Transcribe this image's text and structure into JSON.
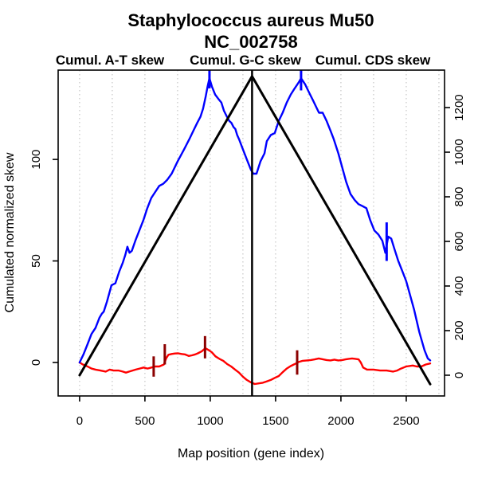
{
  "title": {
    "line1": "Staphylococcus aureus Mu50",
    "line2": "NC_002758"
  },
  "legend": [
    {
      "label": "Cumul. A-T skew",
      "color": "#ff0000"
    },
    {
      "label": "Cumul. G-C skew",
      "color": "#0000ff"
    },
    {
      "label": "Cumul. CDS skew",
      "color": "#000000"
    }
  ],
  "chart_data": {
    "type": "line",
    "title": "Staphylococcus aureus Mu50 NC_002758",
    "xlabel": "Map position (gene index)",
    "ylabel_left": "Cumulated normalized skew",
    "x_ticks": [
      0,
      500,
      1000,
      1500,
      2000,
      2500
    ],
    "y_left_ticks": [
      0,
      50,
      100
    ],
    "y_right_ticks": [
      0,
      200,
      400,
      600,
      800,
      1000,
      1200
    ],
    "grid_x": [
      0,
      250,
      500,
      750,
      1000,
      1250,
      1500,
      1750,
      2000,
      2250,
      2500,
      2750
    ],
    "layout": {
      "xlim": [
        -164,
        2793
      ],
      "ylim_left": [
        -16.5,
        144
      ],
      "ylim_right": [
        -93,
        1368
      ],
      "grid": "vertical-dashed-gray",
      "legend_position": "top"
    },
    "series": [
      {
        "name": "Cumul. A-T skew",
        "color": "#ff0000",
        "axis": "left",
        "width": 2.4,
        "points": [
          [
            0,
            0
          ],
          [
            25,
            -1
          ],
          [
            61,
            -2
          ],
          [
            91,
            -3
          ],
          [
            122,
            -3.5
          ],
          [
            160,
            -4
          ],
          [
            200,
            -4.5
          ],
          [
            230,
            -3.5
          ],
          [
            260,
            -4
          ],
          [
            300,
            -4
          ],
          [
            330,
            -4.5
          ],
          [
            355,
            -5
          ],
          [
            380,
            -4.5
          ],
          [
            405,
            -4
          ],
          [
            430,
            -3.5
          ],
          [
            460,
            -3
          ],
          [
            490,
            -2.5
          ],
          [
            520,
            -3
          ],
          [
            550,
            -2.5
          ],
          [
            580,
            -2
          ],
          [
            610,
            -2
          ],
          [
            645,
            -1
          ],
          [
            662,
            2
          ],
          [
            680,
            3.8
          ],
          [
            705,
            4.2
          ],
          [
            730,
            4.4
          ],
          [
            755,
            4.5
          ],
          [
            780,
            4.2
          ],
          [
            805,
            4
          ],
          [
            835,
            3.2
          ],
          [
            860,
            3.5
          ],
          [
            885,
            4
          ],
          [
            905,
            4.5
          ],
          [
            935,
            5.5
          ],
          [
            963,
            7
          ],
          [
            990,
            6
          ],
          [
            1012,
            5
          ],
          [
            1040,
            3
          ],
          [
            1070,
            1.8
          ],
          [
            1100,
            0.8
          ],
          [
            1130,
            -0.8
          ],
          [
            1160,
            -2
          ],
          [
            1190,
            -3.5
          ],
          [
            1220,
            -5
          ],
          [
            1250,
            -7
          ],
          [
            1280,
            -8.6
          ],
          [
            1310,
            -9.8
          ],
          [
            1341,
            -10.6
          ],
          [
            1372,
            -10.3
          ],
          [
            1402,
            -10
          ],
          [
            1432,
            -9.3
          ],
          [
            1463,
            -8.6
          ],
          [
            1494,
            -7.6
          ],
          [
            1524,
            -6.7
          ],
          [
            1554,
            -4.8
          ],
          [
            1585,
            -3
          ],
          [
            1615,
            -1.8
          ],
          [
            1646,
            -0.8
          ],
          [
            1676,
            0.2
          ],
          [
            1707,
            0.8
          ],
          [
            1740,
            1
          ],
          [
            1770,
            1.2
          ],
          [
            1800,
            1.5
          ],
          [
            1830,
            2
          ],
          [
            1860,
            1.6
          ],
          [
            1890,
            1.2
          ],
          [
            1920,
            1
          ],
          [
            1950,
            1.4
          ],
          [
            1980,
            1
          ],
          [
            2010,
            1.2
          ],
          [
            2035,
            1.5
          ],
          [
            2060,
            1.8
          ],
          [
            2085,
            2
          ],
          [
            2110,
            1.8
          ],
          [
            2135,
            1.5
          ],
          [
            2152,
            0
          ],
          [
            2170,
            -2.5
          ],
          [
            2200,
            -3.5
          ],
          [
            2250,
            -3.5
          ],
          [
            2300,
            -4
          ],
          [
            2350,
            -4
          ],
          [
            2400,
            -4.5
          ],
          [
            2430,
            -4
          ],
          [
            2460,
            -3
          ],
          [
            2500,
            -2
          ],
          [
            2550,
            -1.5
          ],
          [
            2580,
            -2
          ],
          [
            2615,
            -2
          ],
          [
            2650,
            -1
          ],
          [
            2683,
            -0.5
          ]
        ]
      },
      {
        "name": "Cumul. G-C skew",
        "color": "#0000ff",
        "axis": "left",
        "width": 2.4,
        "points": [
          [
            0,
            0
          ],
          [
            30,
            4
          ],
          [
            61,
            9
          ],
          [
            91,
            14
          ],
          [
            122,
            17
          ],
          [
            152,
            22
          ],
          [
            170,
            24
          ],
          [
            185,
            25
          ],
          [
            210,
            30
          ],
          [
            244,
            38
          ],
          [
            274,
            39
          ],
          [
            305,
            45
          ],
          [
            330,
            49
          ],
          [
            350,
            53
          ],
          [
            366,
            57
          ],
          [
            382,
            54
          ],
          [
            400,
            55
          ],
          [
            427,
            60
          ],
          [
            457,
            65
          ],
          [
            488,
            70
          ],
          [
            518,
            76
          ],
          [
            549,
            81
          ],
          [
            579,
            84
          ],
          [
            610,
            87
          ],
          [
            640,
            88
          ],
          [
            671,
            90
          ],
          [
            705,
            93
          ],
          [
            750,
            99
          ],
          [
            800,
            105
          ],
          [
            840,
            110
          ],
          [
            870,
            114
          ],
          [
            900,
            118
          ],
          [
            925,
            121
          ],
          [
            945,
            125
          ],
          [
            965,
            131
          ],
          [
            980,
            136
          ],
          [
            994,
            140
          ],
          [
            1012,
            136
          ],
          [
            1037,
            132
          ],
          [
            1060,
            130
          ],
          [
            1085,
            128
          ],
          [
            1105,
            124
          ],
          [
            1128,
            121
          ],
          [
            1145,
            119
          ],
          [
            1162,
            118
          ],
          [
            1178,
            116
          ],
          [
            1192,
            115
          ],
          [
            1206,
            112
          ],
          [
            1220,
            110
          ],
          [
            1250,
            105
          ],
          [
            1280,
            100
          ],
          [
            1311,
            95
          ],
          [
            1329,
            93
          ],
          [
            1354,
            93
          ],
          [
            1384,
            99
          ],
          [
            1415,
            103
          ],
          [
            1433,
            109
          ],
          [
            1463,
            112
          ],
          [
            1494,
            113
          ],
          [
            1524,
            119
          ],
          [
            1554,
            123
          ],
          [
            1585,
            128
          ],
          [
            1616,
            132
          ],
          [
            1646,
            135
          ],
          [
            1677,
            138
          ],
          [
            1695,
            140
          ],
          [
            1726,
            137
          ],
          [
            1756,
            133
          ],
          [
            1787,
            129
          ],
          [
            1817,
            125
          ],
          [
            1832,
            123
          ],
          [
            1860,
            123
          ],
          [
            1890,
            119
          ],
          [
            1921,
            114
          ],
          [
            1945,
            110
          ],
          [
            1980,
            103
          ],
          [
            2010,
            96
          ],
          [
            2040,
            89
          ],
          [
            2073,
            83
          ],
          [
            2105,
            80
          ],
          [
            2134,
            78
          ],
          [
            2165,
            77
          ],
          [
            2195,
            76
          ],
          [
            2225,
            70
          ],
          [
            2256,
            65
          ],
          [
            2287,
            63
          ],
          [
            2317,
            60
          ],
          [
            2340,
            54
          ],
          [
            2362,
            62
          ],
          [
            2385,
            61
          ],
          [
            2409,
            56
          ],
          [
            2439,
            50
          ],
          [
            2470,
            45
          ],
          [
            2500,
            40
          ],
          [
            2530,
            33
          ],
          [
            2560,
            26
          ],
          [
            2600,
            15
          ],
          [
            2640,
            6
          ],
          [
            2665,
            2
          ],
          [
            2683,
            1
          ]
        ]
      },
      {
        "name": "Cumul. CDS skew",
        "color": "#000000",
        "axis": "right",
        "width": 3,
        "points": [
          [
            0,
            0
          ],
          [
            1320,
            1340
          ],
          [
            2683,
            -40
          ]
        ]
      }
    ],
    "markers": {
      "terminus_vline": {
        "x": 1320,
        "color": "#000000",
        "width": 2.5
      },
      "spikes": [
        {
          "x": 567,
          "y1": -7,
          "y2": 3,
          "color": "#8b0000",
          "axis": "left"
        },
        {
          "x": 652,
          "y1": -1,
          "y2": 9,
          "color": "#8b0000",
          "axis": "left"
        },
        {
          "x": 960,
          "y1": 2,
          "y2": 13,
          "color": "#8b0000",
          "axis": "left"
        },
        {
          "x": 1665,
          "y1": -6,
          "y2": 6,
          "color": "#8b0000",
          "axis": "left"
        },
        {
          "x": 994,
          "y1": 135,
          "y2": 144,
          "color": "#0000ff",
          "axis": "left"
        },
        {
          "x": 1695,
          "y1": 134,
          "y2": 144,
          "color": "#0000ff",
          "axis": "left"
        },
        {
          "x": 2350,
          "y1": 50,
          "y2": 69,
          "color": "#0000ff",
          "axis": "left"
        }
      ]
    }
  }
}
